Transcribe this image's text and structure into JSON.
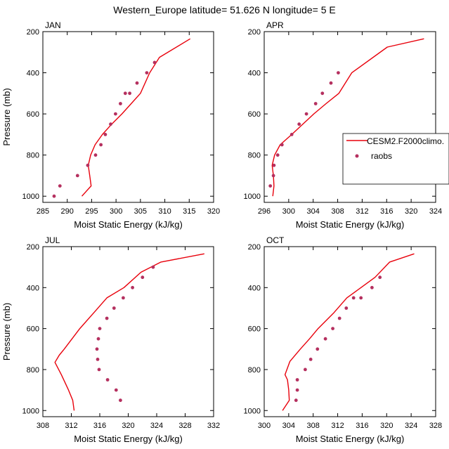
{
  "title": "Western_Europe  latitude= 51.626 N longitude= 5 E",
  "legend": {
    "model_label": "CESM2.F2000climo.",
    "obs_label": "raobs",
    "model_color": "#e8000b",
    "obs_color": "#b5305f"
  },
  "chart_data": [
    {
      "type": "scatter",
      "panel": "JAN",
      "xlabel": "Moist Static Energy (kJ/kg)",
      "ylabel": "Pressure (mb)",
      "xlim": [
        285,
        320
      ],
      "xticks": [
        285,
        290,
        295,
        300,
        305,
        310,
        315,
        320
      ],
      "ylim": [
        1030,
        200
      ],
      "yticks": [
        200,
        400,
        600,
        800,
        1000
      ],
      "series": [
        {
          "name": "CESM2.F2000climo.",
          "kind": "line",
          "x": [
            293.0,
            294.9,
            294.6,
            294.3,
            294.8,
            295.7,
            297.2,
            299.1,
            301.2,
            303.1,
            305.0,
            306.9,
            308.9,
            315.2
          ],
          "y": [
            1000,
            950,
            900,
            850,
            800,
            750,
            700,
            650,
            600,
            550,
            500,
            400,
            325,
            235
          ]
        },
        {
          "name": "raobs",
          "kind": "points",
          "x": [
            287.3,
            288.5,
            292.1,
            294.2,
            295.8,
            296.9,
            297.8,
            298.9,
            299.9,
            300.9,
            301.9,
            302.8,
            304.3,
            306.3,
            307.9
          ],
          "y": [
            1000,
            950,
            900,
            850,
            800,
            750,
            700,
            650,
            600,
            550,
            500,
            500,
            450,
            400,
            350
          ]
        }
      ]
    },
    {
      "type": "scatter",
      "panel": "APR",
      "xlabel": "Moist Static Energy (kJ/kg)",
      "ylabel": "",
      "xlim": [
        296,
        324
      ],
      "xticks": [
        296,
        300,
        304,
        308,
        312,
        316,
        320,
        324
      ],
      "ylim": [
        1030,
        200
      ],
      "yticks": [
        200,
        400,
        600,
        800,
        1000
      ],
      "series": [
        {
          "name": "CESM2.F2000climo.",
          "kind": "line",
          "x": [
            297.4,
            297.6,
            297.5,
            297.3,
            297.7,
            298.6,
            300.5,
            302.3,
            304.1,
            306.1,
            308.2,
            310.3,
            316.1,
            322.1
          ],
          "y": [
            1000,
            950,
            900,
            850,
            800,
            750,
            700,
            650,
            600,
            550,
            500,
            400,
            275,
            235
          ]
        },
        {
          "name": "raobs",
          "kind": "points",
          "x": [
            297.0,
            297.5,
            297.6,
            298.2,
            298.9,
            300.5,
            301.7,
            302.9,
            304.4,
            305.5,
            306.9,
            308.1
          ],
          "y": [
            950,
            900,
            850,
            800,
            750,
            700,
            650,
            600,
            550,
            500,
            450,
            400
          ]
        }
      ]
    },
    {
      "type": "scatter",
      "panel": "JUL",
      "xlabel": "Moist Static Energy (kJ/kg)",
      "ylabel": "Pressure (mb)",
      "xlim": [
        308,
        332
      ],
      "xticks": [
        308,
        312,
        316,
        320,
        324,
        328,
        332
      ],
      "ylim": [
        1030,
        200
      ],
      "yticks": [
        200,
        400,
        600,
        800,
        1000
      ],
      "series": [
        {
          "name": "CESM2.F2000climo.",
          "kind": "line",
          "x": [
            312.4,
            312.2,
            311.6,
            310.6,
            309.7,
            310.3,
            311.0,
            313.2,
            315.1,
            317.0,
            319.4,
            321.8,
            324.6,
            330.7
          ],
          "y": [
            1000,
            950,
            900,
            825,
            765,
            730,
            700,
            600,
            525,
            450,
            400,
            325,
            275,
            235
          ]
        },
        {
          "name": "raobs",
          "kind": "points",
          "x": [
            318.9,
            318.3,
            317.1,
            315.9,
            315.7,
            315.6,
            315.8,
            316.0,
            317.0,
            318.0,
            319.3,
            320.6,
            322.0,
            323.5
          ],
          "y": [
            950,
            900,
            850,
            800,
            750,
            700,
            650,
            600,
            550,
            500,
            450,
            400,
            350,
            300
          ]
        }
      ]
    },
    {
      "type": "scatter",
      "panel": "OCT",
      "xlabel": "Moist Static Energy (kJ/kg)",
      "ylabel": "",
      "xlim": [
        300,
        328
      ],
      "xticks": [
        300,
        304,
        308,
        312,
        316,
        320,
        324,
        328
      ],
      "ylim": [
        1030,
        200
      ],
      "yticks": [
        200,
        400,
        600,
        800,
        1000
      ],
      "series": [
        {
          "name": "CESM2.F2000climo.",
          "kind": "line",
          "x": [
            303.0,
            304.1,
            304.0,
            303.8,
            303.4,
            304.2,
            305.9,
            307.4,
            308.8,
            311.3,
            313.5,
            315.8,
            318.1,
            320.5,
            324.5
          ],
          "y": [
            1000,
            950,
            900,
            850,
            825,
            760,
            700,
            650,
            600,
            525,
            450,
            400,
            350,
            275,
            235
          ]
        },
        {
          "name": "raobs",
          "kind": "points",
          "x": [
            305.2,
            305.4,
            305.4,
            306.7,
            307.6,
            308.7,
            310.0,
            311.2,
            312.3,
            313.4,
            314.6,
            315.8,
            317.6,
            318.9
          ],
          "y": [
            950,
            900,
            850,
            800,
            750,
            700,
            650,
            600,
            550,
            500,
            450,
            450,
            400,
            350
          ]
        }
      ]
    }
  ]
}
